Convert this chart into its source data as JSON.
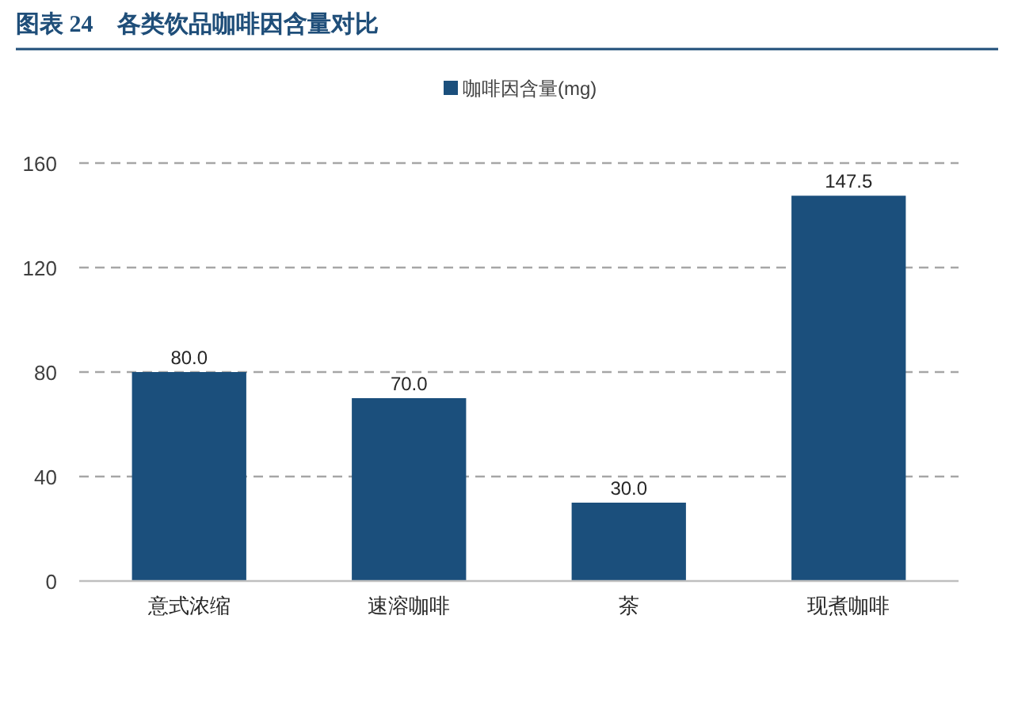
{
  "chart_data": {
    "type": "bar",
    "title": "图表 24　各类饮品咖啡因含量对比",
    "categories": [
      "意式浓缩",
      "速溶咖啡",
      "茶",
      "现煮咖啡"
    ],
    "series": [
      {
        "name": "咖啡因含量(mg)",
        "color": "#1b4f7c",
        "values": [
          80.0,
          70.0,
          30.0,
          147.5
        ],
        "value_labels": [
          "80.0",
          "70.0",
          "30.0",
          "147.5"
        ]
      }
    ],
    "ylim": [
      0,
      160
    ],
    "yticks": [
      0,
      40,
      80,
      120,
      160
    ],
    "grid": "y",
    "legend": "top"
  }
}
